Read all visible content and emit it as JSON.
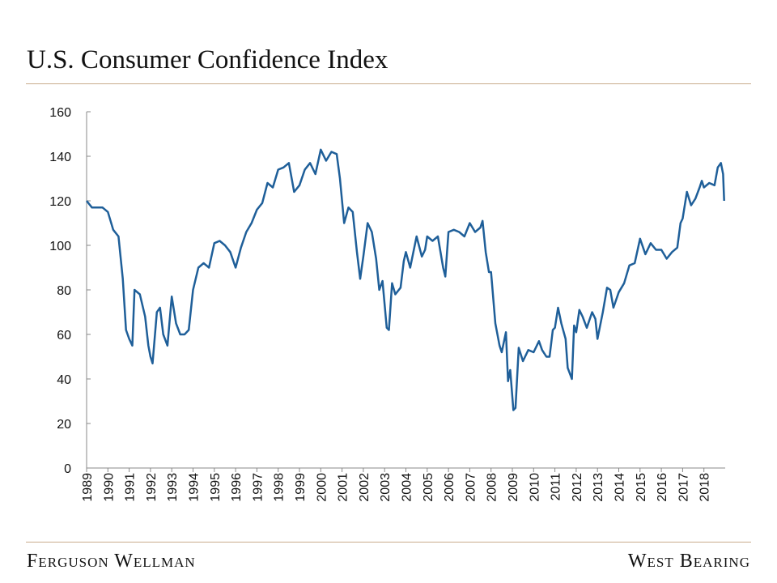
{
  "chart_data": {
    "type": "line",
    "title": "U.S. Consumer Confidence Index",
    "footer_left": "Ferguson Wellman",
    "footer_right": "West Bearing",
    "color": "#1f5f99",
    "xlim": [
      1989,
      2019
    ],
    "xticks": [
      1989,
      1990,
      1991,
      1992,
      1993,
      1994,
      1995,
      1996,
      1997,
      1998,
      1999,
      2000,
      2001,
      2002,
      2003,
      2004,
      2005,
      2006,
      2007,
      2008,
      2009,
      2010,
      2011,
      2012,
      2013,
      2014,
      2015,
      2016,
      2017,
      2018
    ],
    "ylim": [
      0,
      160
    ],
    "yticks": [
      0,
      20,
      40,
      60,
      80,
      100,
      120,
      140,
      160
    ],
    "x": [
      1989.0,
      1989.25,
      1989.5,
      1989.75,
      1990.0,
      1990.25,
      1990.5,
      1990.7,
      1990.85,
      1991.0,
      1991.15,
      1991.25,
      1991.5,
      1991.75,
      1991.9,
      1992.0,
      1992.1,
      1992.3,
      1992.45,
      1992.6,
      1992.8,
      1993.0,
      1993.2,
      1993.4,
      1993.6,
      1993.8,
      1994.0,
      1994.25,
      1994.5,
      1994.75,
      1995.0,
      1995.25,
      1995.5,
      1995.75,
      1996.0,
      1996.25,
      1996.5,
      1996.75,
      1997.0,
      1997.25,
      1997.5,
      1997.75,
      1998.0,
      1998.25,
      1998.5,
      1998.75,
      1999.0,
      1999.25,
      1999.5,
      1999.75,
      2000.0,
      2000.25,
      2000.5,
      2000.75,
      2000.9,
      2001.0,
      2001.1,
      2001.3,
      2001.5,
      2001.7,
      2001.85,
      2002.0,
      2002.2,
      2002.4,
      2002.6,
      2002.75,
      2002.9,
      2003.1,
      2003.2,
      2003.35,
      2003.5,
      2003.75,
      2003.9,
      2004.0,
      2004.2,
      2004.5,
      2004.75,
      2004.9,
      2005.0,
      2005.25,
      2005.5,
      2005.75,
      2005.85,
      2006.0,
      2006.25,
      2006.5,
      2006.75,
      2007.0,
      2007.25,
      2007.5,
      2007.6,
      2007.75,
      2007.9,
      2008.0,
      2008.2,
      2008.4,
      2008.5,
      2008.7,
      2008.8,
      2008.9,
      2009.05,
      2009.15,
      2009.3,
      2009.5,
      2009.75,
      2010.0,
      2010.25,
      2010.4,
      2010.6,
      2010.75,
      2010.9,
      2011.0,
      2011.15,
      2011.3,
      2011.5,
      2011.6,
      2011.8,
      2011.9,
      2012.0,
      2012.15,
      2012.3,
      2012.5,
      2012.75,
      2012.9,
      2013.0,
      2013.25,
      2013.45,
      2013.6,
      2013.75,
      2014.0,
      2014.25,
      2014.5,
      2014.75,
      2015.0,
      2015.25,
      2015.5,
      2015.75,
      2016.0,
      2016.25,
      2016.5,
      2016.75,
      2016.9,
      2017.0,
      2017.2,
      2017.4,
      2017.6,
      2017.8,
      2017.9,
      2018.0,
      2018.25,
      2018.5,
      2018.65,
      2018.8,
      2018.9,
      2018.95
    ],
    "values": [
      120,
      117,
      117,
      117,
      115,
      107,
      104,
      85,
      62,
      58,
      55,
      80,
      78,
      68,
      55,
      50,
      47,
      70,
      72,
      60,
      55,
      77,
      65,
      60,
      60,
      62,
      80,
      90,
      92,
      90,
      101,
      102,
      100,
      97,
      90,
      99,
      106,
      110,
      116,
      119,
      128,
      126,
      134,
      135,
      137,
      124,
      127,
      134,
      137,
      132,
      143,
      138,
      142,
      141,
      130,
      120,
      110,
      117,
      115,
      97,
      85,
      95,
      110,
      106,
      94,
      80,
      84,
      63,
      62,
      83,
      78,
      81,
      93,
      97,
      90,
      104,
      95,
      98,
      104,
      102,
      104,
      90,
      86,
      106,
      107,
      106,
      104,
      110,
      106,
      108,
      111,
      97,
      88,
      88,
      65,
      55,
      52,
      61,
      39,
      44,
      26,
      27,
      54,
      48,
      53,
      52,
      57,
      53,
      50,
      50,
      62,
      63,
      72,
      65,
      58,
      45,
      40,
      64,
      61,
      71,
      68,
      63,
      70,
      67,
      58,
      70,
      81,
      80,
      72,
      79,
      83,
      91,
      92,
      103,
      96,
      101,
      98,
      98,
      94,
      97,
      99,
      110,
      112,
      124,
      118,
      121,
      126,
      129,
      126,
      128,
      127,
      135,
      137,
      132,
      120
    ]
  }
}
